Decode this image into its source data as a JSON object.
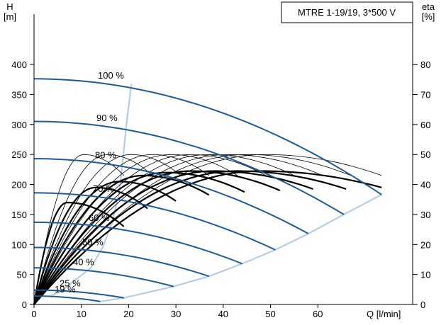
{
  "chart_data": {
    "type": "line",
    "title": "MTRE 1-19/19, 3*500 V",
    "xlabel": "Q [l/min]",
    "ylabel_left": {
      "symbol": "H",
      "unit": "[m]"
    },
    "ylabel_right": {
      "symbol": "eta",
      "unit": "[%]"
    },
    "x_ticks": [
      0,
      10,
      20,
      30,
      40,
      50,
      60
    ],
    "y_left_ticks": [
      0,
      50,
      100,
      150,
      200,
      250,
      300,
      350,
      400
    ],
    "y_right_ticks": [
      0,
      10,
      20,
      30,
      40,
      50,
      60,
      70,
      80
    ],
    "xlim": [
      0,
      80
    ],
    "ylim_left": [
      0,
      500
    ],
    "ylim_right": [
      0,
      100
    ],
    "grid": false,
    "colors": {
      "head_curve": "#1f5b94",
      "operating_limit": "#b7cde4",
      "efficiency_curve": "#000000"
    },
    "head_curves": [
      {
        "label": "100 %",
        "h0": 376,
        "q_end": 73.5,
        "h_end": 183
      },
      {
        "label": "90 %",
        "h0": 305,
        "q_end": 65.5,
        "h_end": 150
      },
      {
        "label": "80 %",
        "h0": 243,
        "q_end": 58.0,
        "h_end": 118
      },
      {
        "label": "70 %",
        "h0": 186,
        "q_end": 51.0,
        "h_end": 91
      },
      {
        "label": "60 %",
        "h0": 137,
        "q_end": 44.0,
        "h_end": 68
      },
      {
        "label": "50 %",
        "h0": 95,
        "q_end": 37.0,
        "h_end": 47
      },
      {
        "label": "40 %",
        "h0": 61,
        "q_end": 29.5,
        "h_end": 30
      },
      {
        "label": "25 %",
        "h0": 24,
        "q_end": 19.0,
        "h_end": 11
      },
      {
        "label": "19 %",
        "h0": 14,
        "q_end": 14.0,
        "h_end": 5
      }
    ],
    "operating_limits": {
      "min_flow": [
        [
          3.5,
          14
        ],
        [
          6,
          24
        ],
        [
          12,
          61
        ],
        [
          14.5,
          95
        ],
        [
          16.5,
          137
        ],
        [
          18,
          186
        ],
        [
          18.8,
          243
        ],
        [
          19.6,
          305
        ],
        [
          20.6,
          368
        ]
      ],
      "max_flow": [
        [
          14,
          5
        ],
        [
          19,
          11
        ],
        [
          29.5,
          30
        ],
        [
          37,
          47
        ],
        [
          44,
          68
        ],
        [
          51,
          91
        ],
        [
          58,
          118
        ],
        [
          65.5,
          150
        ],
        [
          73.5,
          183
        ]
      ]
    },
    "efficiency_curves": {
      "thin": [
        {
          "q_peak": 10.5,
          "eta_peak": 50,
          "q_end": 19
        },
        {
          "q_peak": 15.5,
          "eta_peak": 50,
          "q_end": 25
        },
        {
          "q_peak": 20.5,
          "eta_peak": 50,
          "q_end": 31
        },
        {
          "q_peak": 25.0,
          "eta_peak": 50,
          "q_end": 37
        },
        {
          "q_peak": 29.0,
          "eta_peak": 50,
          "q_end": 43
        },
        {
          "q_peak": 33.0,
          "eta_peak": 50,
          "q_end": 49
        },
        {
          "q_peak": 37.0,
          "eta_peak": 50,
          "q_end": 55
        },
        {
          "q_peak": 41.0,
          "eta_peak": 50,
          "q_end": 61
        },
        {
          "q_peak": 45.0,
          "eta_peak": 50,
          "q_end": 67
        },
        {
          "q_peak": 49.0,
          "eta_peak": 50,
          "q_end": 73.5
        }
      ],
      "thick": [
        {
          "q_peak": 7.0,
          "eta_peak": 34,
          "q_end": 19.0,
          "eta_end": 26
        },
        {
          "q_peak": 13.0,
          "eta_peak": 39,
          "q_end": 24.0,
          "eta_end": 32
        },
        {
          "q_peak": 18.0,
          "eta_peak": 41,
          "q_end": 30.0,
          "eta_end": 34.5
        },
        {
          "q_peak": 23.0,
          "eta_peak": 43,
          "q_end": 37.0,
          "eta_end": 36.5
        },
        {
          "q_peak": 28.0,
          "eta_peak": 44,
          "q_end": 44.5,
          "eta_end": 37.5
        },
        {
          "q_peak": 33.0,
          "eta_peak": 44.5,
          "q_end": 52.0,
          "eta_end": 38
        },
        {
          "q_peak": 38.0,
          "eta_peak": 44.5,
          "q_end": 59.0,
          "eta_end": 38.5
        },
        {
          "q_peak": 43.0,
          "eta_peak": 44.5,
          "q_end": 66.0,
          "eta_end": 38.5
        },
        {
          "q_peak": 48.0,
          "eta_peak": 44.5,
          "q_end": 73.5,
          "eta_end": 39
        }
      ]
    }
  }
}
